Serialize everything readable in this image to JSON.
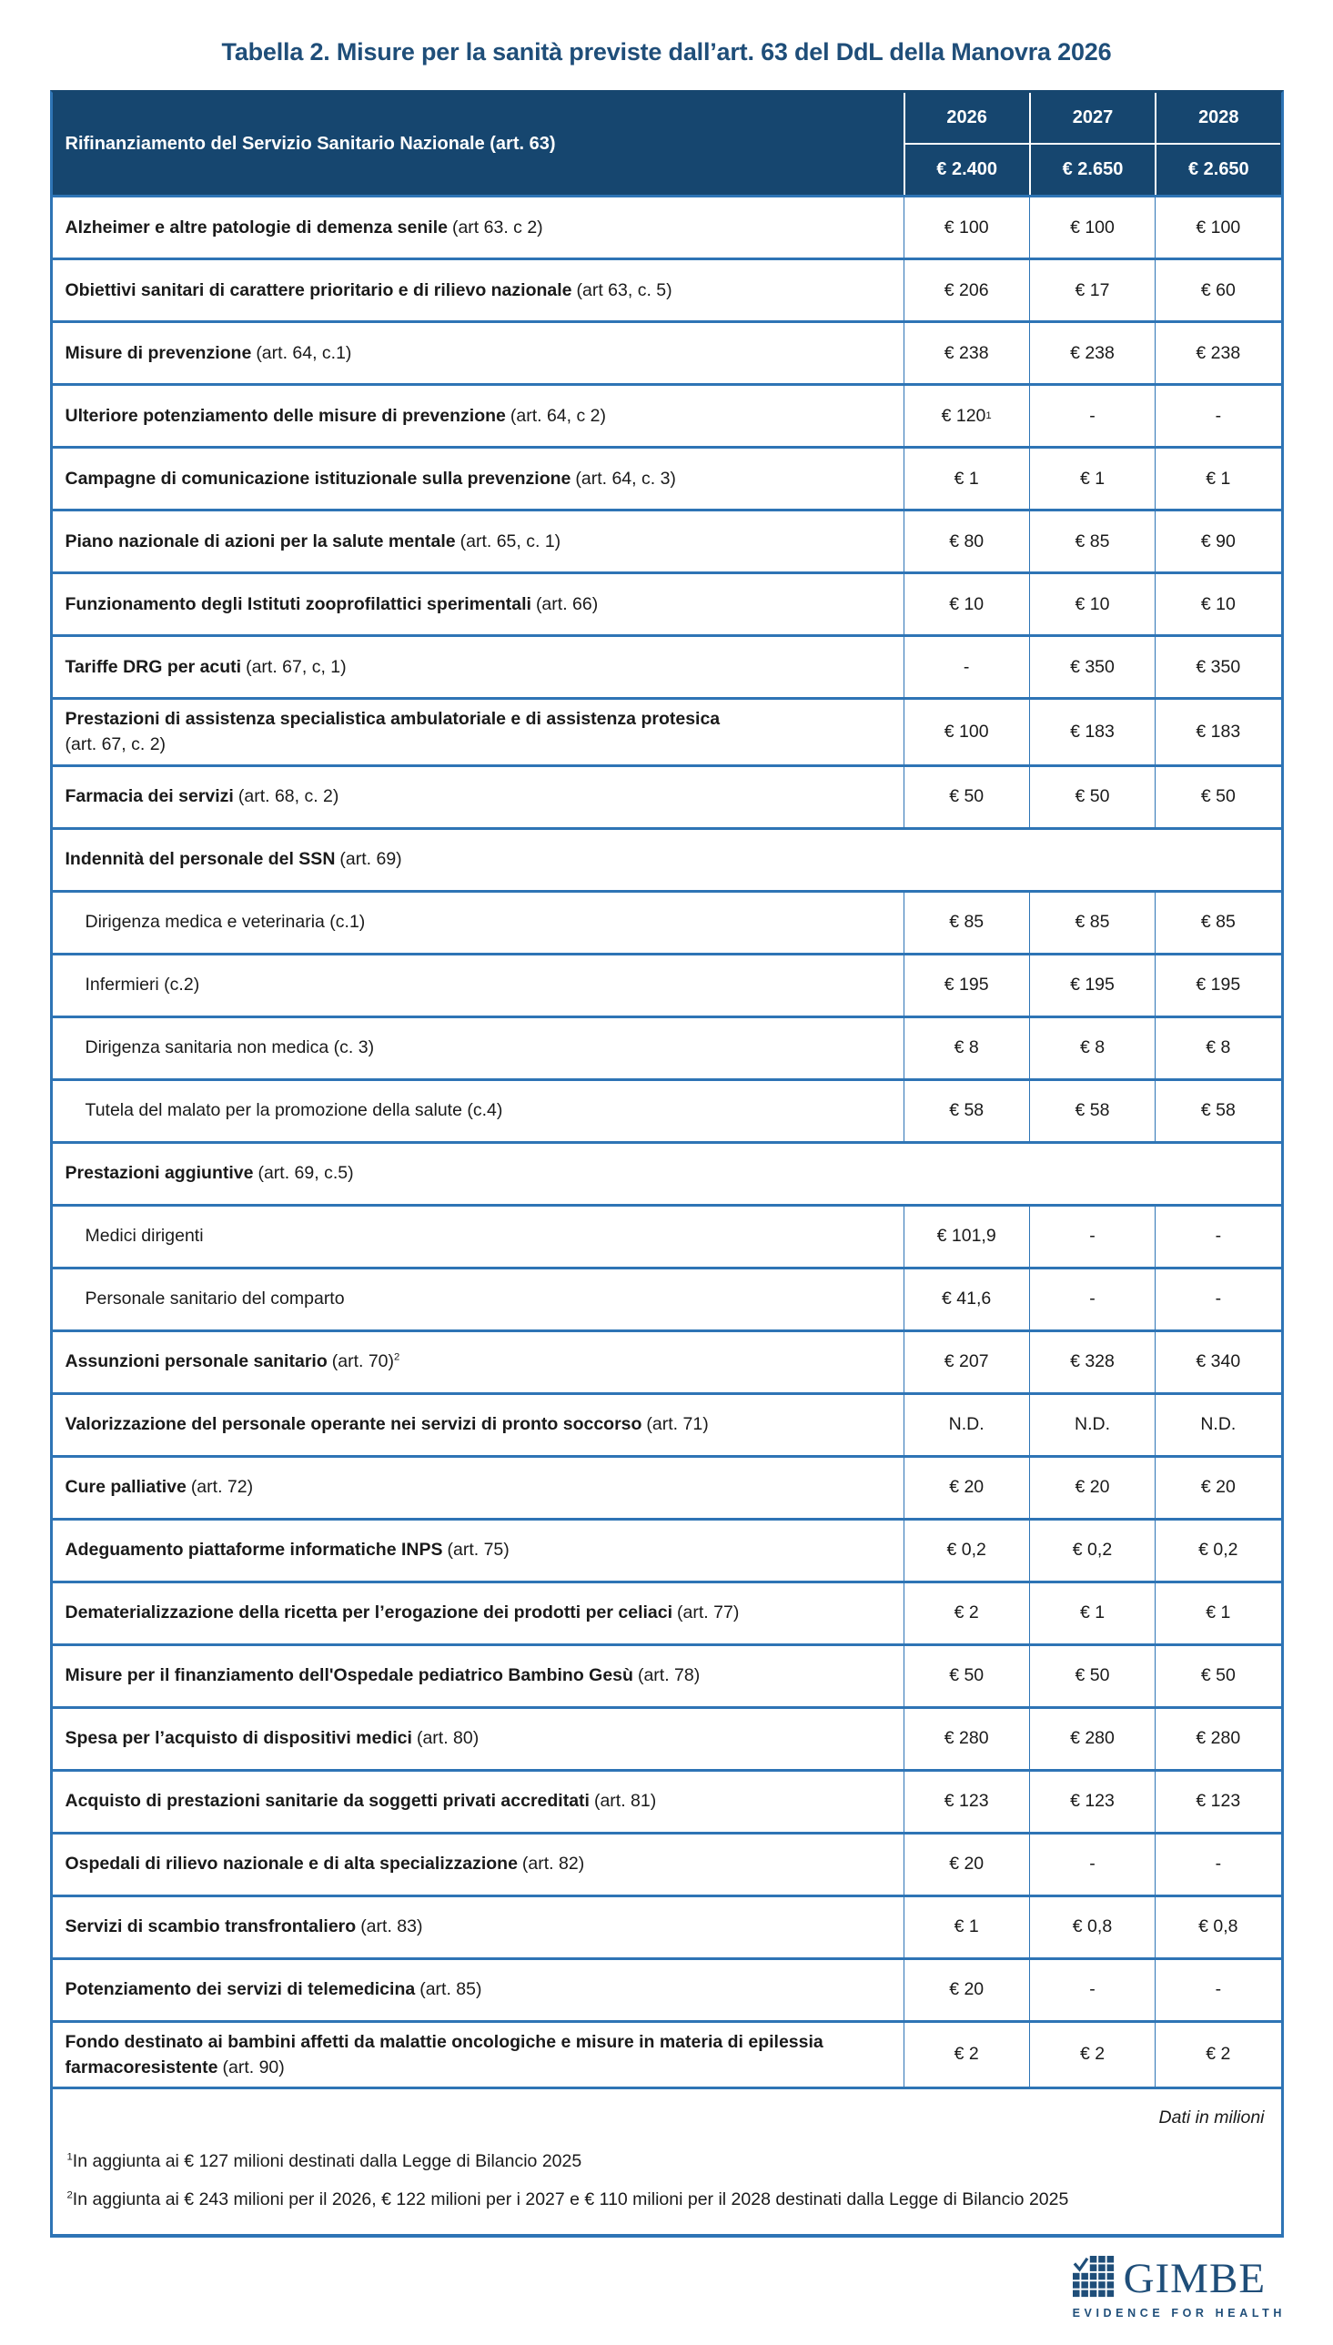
{
  "title": "Tabella 2. Misure per la sanità previste dall’art. 63 del DdL della Manovra 2026",
  "colors": {
    "header-bg": "#16466F",
    "border-outer": "#2E74B5",
    "border-row": "#2E74B5",
    "title": "#1F4E79",
    "logo": "#1F4E79",
    "text": "#1A1A1A"
  },
  "table": {
    "header": {
      "label": "Rifinanziamento del Servizio Sanitario Nazionale (art. 63)",
      "years": [
        "2026",
        "2027",
        "2028"
      ],
      "totals": [
        "€ 2.400",
        "€ 2.650",
        "€ 2.650"
      ]
    },
    "rows": [
      {
        "type": "item",
        "label": "Alzheimer e altre patologie di demenza senile",
        "ref": "(art 63. c 2)",
        "values": [
          "€ 100",
          "€ 100",
          "€ 100"
        ]
      },
      {
        "type": "item",
        "label": "Obiettivi sanitari di carattere prioritario e di rilievo nazionale",
        "ref": "(art 63, c. 5)",
        "values": [
          "€ 206",
          "€ 17",
          "€ 60"
        ]
      },
      {
        "type": "item",
        "label": "Misure di prevenzione",
        "ref": "(art. 64, c.1)",
        "values": [
          "€ 238",
          "€ 238",
          "€ 238"
        ]
      },
      {
        "type": "item",
        "label": "Ulteriore potenziamento delle misure di prevenzione",
        "ref": "(art. 64, c 2)",
        "values": [
          "€ 120",
          "-",
          "-"
        ],
        "sup_values": [
          "1",
          "",
          ""
        ]
      },
      {
        "type": "item",
        "label": "Campagne di comunicazione istituzionale sulla prevenzione",
        "ref": "(art. 64, c. 3)",
        "values": [
          "€ 1",
          "€ 1",
          "€ 1"
        ]
      },
      {
        "type": "item",
        "label": "Piano nazionale di azioni per la salute mentale",
        "ref": "(art. 65, c. 1)",
        "values": [
          "€ 80",
          "€ 85",
          "€ 90"
        ]
      },
      {
        "type": "item",
        "label": "Funzionamento degli Istituti zooprofilattici sperimentali",
        "ref": "(art. 66)",
        "values": [
          "€ 10",
          "€ 10",
          "€ 10"
        ]
      },
      {
        "type": "item",
        "label": "Tariffe DRG per acuti",
        "ref": "(art. 67, c, 1)",
        "values": [
          "-",
          "€ 350",
          "€ 350"
        ]
      },
      {
        "type": "item",
        "label": "Prestazioni di assistenza specialistica ambulatoriale e di assistenza protesica",
        "ref": "(art. 67, c. 2)",
        "ref_on_new_line": true,
        "values": [
          "€ 100",
          "€ 183",
          "€ 183"
        ]
      },
      {
        "type": "item",
        "label": "Farmacia dei servizi",
        "ref": "(art. 68, c. 2)",
        "values": [
          "€ 50",
          "€ 50",
          "€ 50"
        ]
      },
      {
        "type": "section",
        "label": "Indennità del personale del SSN",
        "ref": "(art. 69)"
      },
      {
        "type": "sub",
        "label": "Dirigenza medica e veterinaria (c.1)",
        "values": [
          "€ 85",
          "€ 85",
          "€ 85"
        ]
      },
      {
        "type": "sub",
        "label": "Infermieri (c.2)",
        "values": [
          "€ 195",
          "€ 195",
          "€ 195"
        ]
      },
      {
        "type": "sub",
        "label": "Dirigenza sanitaria non medica (c. 3)",
        "values": [
          "€ 8",
          "€ 8",
          "€ 8"
        ]
      },
      {
        "type": "sub",
        "label": "Tutela del malato per la promozione della salute (c.4)",
        "values": [
          "€ 58",
          "€ 58",
          "€ 58"
        ]
      },
      {
        "type": "section",
        "label": "Prestazioni aggiuntive",
        "ref": "(art. 69, c.5)"
      },
      {
        "type": "sub",
        "label": "Medici dirigenti",
        "values": [
          "€ 101,9",
          "-",
          "-"
        ]
      },
      {
        "type": "sub",
        "label": "Personale sanitario del comparto",
        "values": [
          "€ 41,6",
          "-",
          "-"
        ]
      },
      {
        "type": "item",
        "label": "Assunzioni personale sanitario",
        "ref": "(art. 70)",
        "sup_ref": "2",
        "values": [
          "€ 207",
          "€ 328",
          "€ 340"
        ]
      },
      {
        "type": "item",
        "label": "Valorizzazione del personale operante nei servizi di pronto soccorso",
        "ref": "(art. 71)",
        "values": [
          "N.D.",
          "N.D.",
          "N.D."
        ]
      },
      {
        "type": "item",
        "label": "Cure palliative",
        "ref": "(art. 72)",
        "values": [
          "€ 20",
          "€ 20",
          "€ 20"
        ]
      },
      {
        "type": "item",
        "label": "Adeguamento piattaforme informatiche INPS",
        "ref": "(art. 75)",
        "values": [
          "€ 0,2",
          "€ 0,2",
          "€ 0,2"
        ]
      },
      {
        "type": "item",
        "label": "Dematerializzazione della ricetta per l’erogazione dei prodotti per celiaci",
        "ref": "(art. 77)",
        "values": [
          "€ 2",
          "€ 1",
          "€ 1"
        ]
      },
      {
        "type": "item",
        "label": "Misure per il finanziamento dell'Ospedale pediatrico Bambino Gesù",
        "ref": "(art. 78)",
        "values": [
          "€ 50",
          "€ 50",
          "€ 50"
        ]
      },
      {
        "type": "item",
        "label": "Spesa per l’acquisto di dispositivi medici",
        "ref": "(art. 80)",
        "values": [
          "€ 280",
          "€ 280",
          "€ 280"
        ]
      },
      {
        "type": "item",
        "label": "Acquisto di prestazioni sanitarie da soggetti privati accreditati",
        "ref": "(art. 81)",
        "values": [
          "€ 123",
          "€ 123",
          "€ 123"
        ]
      },
      {
        "type": "item",
        "label": "Ospedali di rilievo nazionale e di alta specializzazione",
        "ref": "(art. 82)",
        "values": [
          "€ 20",
          "-",
          "-"
        ]
      },
      {
        "type": "item",
        "label": "Servizi di scambio transfrontaliero",
        "ref": "(art. 83)",
        "values": [
          "€ 1",
          "€ 0,8",
          "€ 0,8"
        ]
      },
      {
        "type": "item",
        "label": "Potenziamento dei servizi di telemedicina",
        "ref": "(art. 85)",
        "values": [
          "€ 20",
          "-",
          "-"
        ]
      },
      {
        "type": "item",
        "label": "Fondo destinato ai bambini affetti da malattie oncologiche e misure in materia di epilessia farmacoresistente",
        "ref": "(art. 90)",
        "values": [
          "€ 2",
          "€ 2",
          "€ 2"
        ]
      }
    ]
  },
  "footer": {
    "note": "Dati in milioni",
    "footnotes": [
      {
        "sup": "1",
        "text": "In aggiunta ai € 127 milioni destinati dalla Legge di Bilancio 2025"
      },
      {
        "sup": "2",
        "text": "In aggiunta ai € 243 milioni per il 2026, € 122 milioni per i 2027 e € 110 milioni per il 2028 destinati dalla Legge di Bilancio 2025"
      }
    ]
  },
  "logo": {
    "name": "GIMBE",
    "tagline": "EVIDENCE FOR HEALTH"
  }
}
